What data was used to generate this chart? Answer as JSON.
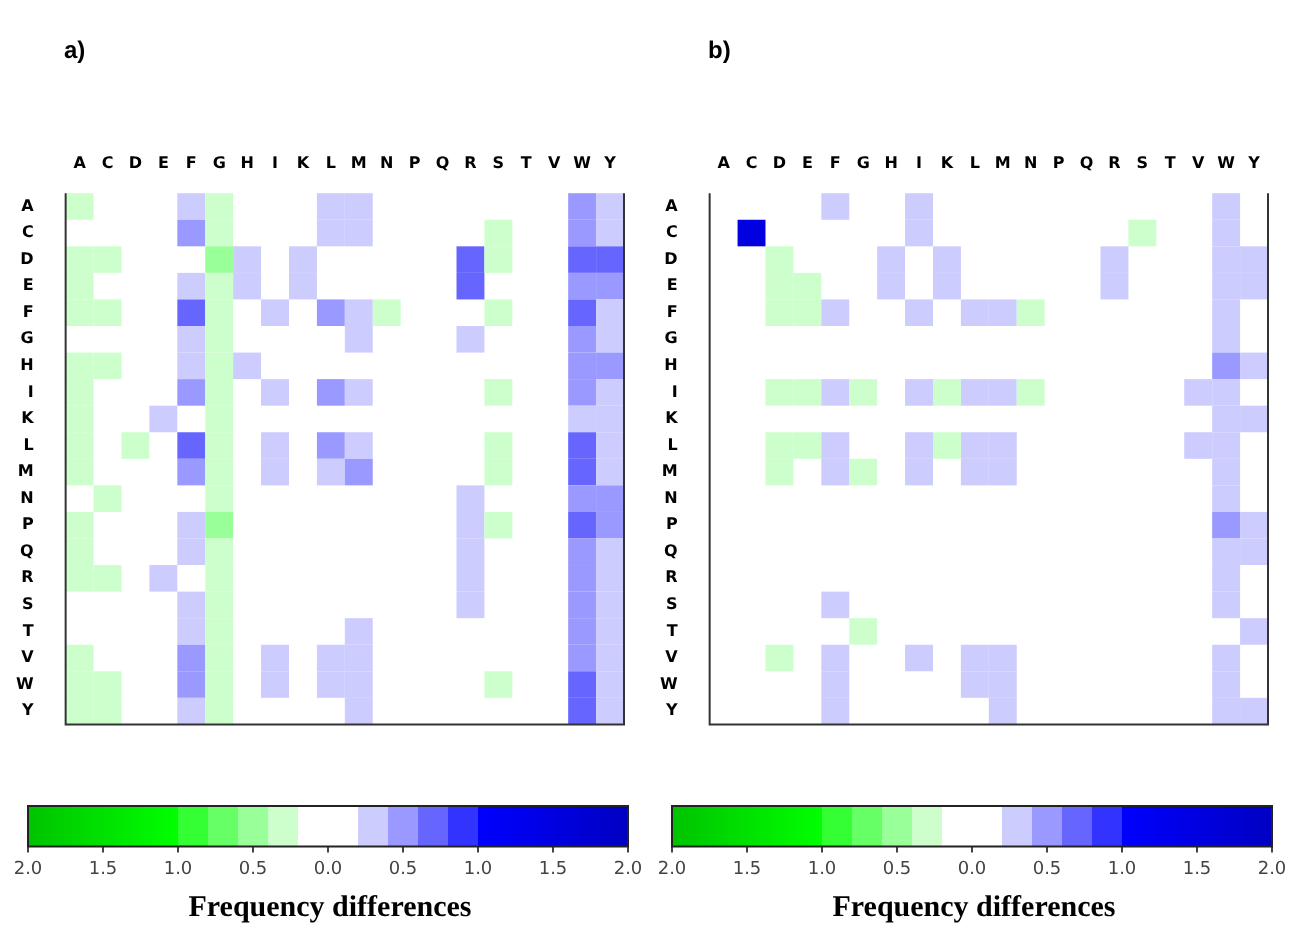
{
  "chart_data": [
    {
      "type": "heatmap",
      "title": "a)",
      "clabel": "Frequency differences",
      "clim": [
        -2,
        2
      ],
      "cticks": [
        {
          "value": -2,
          "label": "2.0"
        },
        {
          "value": -1.5,
          "label": "1.5"
        },
        {
          "value": -1,
          "label": "1.0"
        },
        {
          "value": -0.5,
          "label": "0.5"
        },
        {
          "value": 0,
          "label": "0.0"
        },
        {
          "value": 0.5,
          "label": "0.5"
        },
        {
          "value": 1,
          "label": "1.0"
        },
        {
          "value": 1.5,
          "label": "1.5"
        },
        {
          "value": 2,
          "label": "2.0"
        }
      ],
      "categories": [
        "A",
        "C",
        "D",
        "E",
        "F",
        "G",
        "H",
        "I",
        "K",
        "L",
        "M",
        "N",
        "P",
        "Q",
        "R",
        "S",
        "T",
        "V",
        "W",
        "Y"
      ],
      "y_categories": [
        "A",
        "C",
        "D",
        "E",
        "F",
        "G",
        "H",
        "I",
        "K",
        "L",
        "M",
        "N",
        "P",
        "Q",
        "R",
        "S",
        "T",
        "V",
        "W",
        "Y"
      ],
      "cells": [
        [
          -0.3,
          null,
          null,
          null,
          0.3,
          -0.3,
          null,
          null,
          null,
          0.3,
          0.3,
          null,
          null,
          null,
          null,
          null,
          null,
          null,
          0.5,
          0.3
        ],
        [
          null,
          null,
          null,
          null,
          0.5,
          -0.3,
          null,
          null,
          null,
          0.3,
          0.3,
          null,
          null,
          null,
          null,
          -0.3,
          null,
          null,
          0.5,
          0.3
        ],
        [
          -0.3,
          -0.3,
          null,
          null,
          null,
          -0.5,
          0.3,
          null,
          0.3,
          null,
          null,
          null,
          null,
          null,
          0.7,
          -0.3,
          null,
          null,
          0.7,
          0.7
        ],
        [
          -0.3,
          null,
          null,
          null,
          0.3,
          -0.3,
          0.3,
          null,
          0.3,
          null,
          null,
          null,
          null,
          null,
          0.7,
          null,
          null,
          null,
          0.5,
          0.5
        ],
        [
          -0.3,
          -0.3,
          null,
          null,
          0.7,
          -0.3,
          null,
          0.3,
          null,
          0.5,
          0.3,
          -0.3,
          null,
          null,
          null,
          -0.3,
          null,
          null,
          0.7,
          0.3
        ],
        [
          null,
          null,
          null,
          null,
          0.3,
          -0.3,
          null,
          null,
          null,
          null,
          0.3,
          null,
          null,
          null,
          0.3,
          null,
          null,
          null,
          0.5,
          0.3
        ],
        [
          -0.3,
          -0.3,
          null,
          null,
          0.3,
          -0.3,
          0.3,
          null,
          null,
          null,
          null,
          null,
          null,
          null,
          null,
          null,
          null,
          null,
          0.5,
          0.5
        ],
        [
          -0.3,
          null,
          null,
          null,
          0.5,
          -0.3,
          null,
          0.3,
          null,
          0.5,
          0.3,
          null,
          null,
          null,
          null,
          -0.3,
          null,
          null,
          0.5,
          0.3
        ],
        [
          -0.3,
          null,
          null,
          0.3,
          null,
          -0.3,
          null,
          null,
          null,
          null,
          null,
          null,
          null,
          null,
          null,
          null,
          null,
          null,
          0.3,
          0.3
        ],
        [
          -0.3,
          null,
          -0.3,
          null,
          0.7,
          -0.3,
          null,
          0.3,
          null,
          0.5,
          0.3,
          null,
          null,
          null,
          null,
          -0.3,
          null,
          null,
          0.7,
          0.3
        ],
        [
          -0.3,
          null,
          null,
          null,
          0.5,
          -0.3,
          null,
          0.3,
          null,
          0.3,
          0.5,
          null,
          null,
          null,
          null,
          -0.3,
          null,
          null,
          0.7,
          0.3
        ],
        [
          null,
          -0.3,
          null,
          null,
          null,
          -0.3,
          null,
          null,
          null,
          null,
          null,
          null,
          null,
          null,
          0.3,
          null,
          null,
          null,
          0.5,
          0.5
        ],
        [
          -0.3,
          null,
          null,
          null,
          0.3,
          -0.5,
          null,
          null,
          null,
          null,
          null,
          null,
          null,
          null,
          0.3,
          -0.3,
          null,
          null,
          0.7,
          0.5
        ],
        [
          -0.3,
          null,
          null,
          null,
          0.3,
          -0.3,
          null,
          null,
          null,
          null,
          null,
          null,
          null,
          null,
          0.3,
          null,
          null,
          null,
          0.5,
          0.3
        ],
        [
          -0.3,
          -0.3,
          null,
          0.3,
          null,
          -0.3,
          null,
          null,
          null,
          null,
          null,
          null,
          null,
          null,
          0.3,
          null,
          null,
          null,
          0.5,
          0.3
        ],
        [
          null,
          null,
          null,
          null,
          0.3,
          -0.3,
          null,
          null,
          null,
          null,
          null,
          null,
          null,
          null,
          0.3,
          null,
          null,
          null,
          0.5,
          0.3
        ],
        [
          null,
          null,
          null,
          null,
          0.3,
          -0.3,
          null,
          null,
          null,
          null,
          0.3,
          null,
          null,
          null,
          null,
          null,
          null,
          null,
          0.5,
          0.3
        ],
        [
          -0.3,
          null,
          null,
          null,
          0.5,
          -0.3,
          null,
          0.3,
          null,
          0.3,
          0.3,
          null,
          null,
          null,
          null,
          null,
          null,
          null,
          0.5,
          0.3
        ],
        [
          -0.3,
          -0.3,
          null,
          null,
          0.5,
          -0.3,
          null,
          0.3,
          null,
          0.3,
          0.3,
          null,
          null,
          null,
          null,
          -0.3,
          null,
          null,
          0.7,
          0.3
        ],
        [
          -0.3,
          -0.3,
          null,
          null,
          0.3,
          -0.3,
          null,
          null,
          null,
          null,
          0.3,
          null,
          null,
          null,
          null,
          null,
          null,
          null,
          0.7,
          0.3
        ]
      ]
    },
    {
      "type": "heatmap",
      "title": "b)",
      "clabel": "Frequency differences",
      "clim": [
        -2,
        2
      ],
      "cticks": [
        {
          "value": -2,
          "label": "2.0"
        },
        {
          "value": -1.5,
          "label": "1.5"
        },
        {
          "value": -1,
          "label": "1.0"
        },
        {
          "value": -0.5,
          "label": "0.5"
        },
        {
          "value": 0,
          "label": "0.0"
        },
        {
          "value": 0.5,
          "label": "0.5"
        },
        {
          "value": 1,
          "label": "1.0"
        },
        {
          "value": 1.5,
          "label": "1.5"
        },
        {
          "value": 2,
          "label": "2.0"
        }
      ],
      "categories": [
        "A",
        "C",
        "D",
        "E",
        "F",
        "G",
        "H",
        "I",
        "K",
        "L",
        "M",
        "N",
        "P",
        "Q",
        "R",
        "S",
        "T",
        "V",
        "W",
        "Y"
      ],
      "y_categories": [
        "A",
        "C",
        "D",
        "E",
        "F",
        "G",
        "H",
        "I",
        "K",
        "L",
        "M",
        "N",
        "P",
        "Q",
        "R",
        "S",
        "T",
        "V",
        "W",
        "Y"
      ],
      "cells": [
        [
          null,
          null,
          null,
          null,
          0.3,
          null,
          null,
          0.3,
          null,
          null,
          null,
          null,
          null,
          null,
          null,
          null,
          null,
          null,
          0.3,
          null
        ],
        [
          null,
          1.5,
          null,
          null,
          null,
          null,
          null,
          0.3,
          null,
          null,
          null,
          null,
          null,
          null,
          null,
          -0.3,
          null,
          null,
          0.3,
          null
        ],
        [
          null,
          null,
          -0.3,
          null,
          null,
          null,
          0.3,
          null,
          0.3,
          null,
          null,
          null,
          null,
          null,
          0.3,
          null,
          null,
          null,
          0.3,
          0.3
        ],
        [
          null,
          null,
          -0.3,
          -0.3,
          null,
          null,
          0.3,
          null,
          0.3,
          null,
          null,
          null,
          null,
          null,
          0.3,
          null,
          null,
          null,
          0.3,
          0.3
        ],
        [
          null,
          null,
          -0.3,
          -0.3,
          0.3,
          null,
          null,
          0.3,
          null,
          0.3,
          0.3,
          -0.3,
          null,
          null,
          null,
          null,
          null,
          null,
          0.3,
          null
        ],
        [
          null,
          null,
          null,
          null,
          null,
          null,
          null,
          null,
          null,
          null,
          null,
          null,
          null,
          null,
          null,
          null,
          null,
          null,
          0.3,
          null
        ],
        [
          null,
          null,
          null,
          null,
          null,
          null,
          null,
          null,
          null,
          null,
          null,
          null,
          null,
          null,
          null,
          null,
          null,
          null,
          0.5,
          0.3
        ],
        [
          null,
          null,
          -0.3,
          -0.3,
          0.3,
          -0.3,
          null,
          0.3,
          -0.3,
          0.3,
          0.3,
          -0.3,
          null,
          null,
          null,
          null,
          null,
          0.3,
          0.3,
          null
        ],
        [
          null,
          null,
          null,
          null,
          null,
          null,
          null,
          null,
          null,
          null,
          null,
          null,
          null,
          null,
          null,
          null,
          null,
          null,
          0.3,
          0.3
        ],
        [
          null,
          null,
          -0.3,
          -0.3,
          0.3,
          null,
          null,
          0.3,
          -0.3,
          0.3,
          0.3,
          null,
          null,
          null,
          null,
          null,
          null,
          0.3,
          0.3,
          null
        ],
        [
          null,
          null,
          -0.3,
          null,
          0.3,
          -0.3,
          null,
          0.3,
          null,
          0.3,
          0.3,
          null,
          null,
          null,
          null,
          null,
          null,
          null,
          0.3,
          null
        ],
        [
          null,
          null,
          null,
          null,
          null,
          null,
          null,
          null,
          null,
          null,
          null,
          null,
          null,
          null,
          null,
          null,
          null,
          null,
          0.3,
          null
        ],
        [
          null,
          null,
          null,
          null,
          null,
          null,
          null,
          null,
          null,
          null,
          null,
          null,
          null,
          null,
          null,
          null,
          null,
          null,
          0.5,
          0.3
        ],
        [
          null,
          null,
          null,
          null,
          null,
          null,
          null,
          null,
          null,
          null,
          null,
          null,
          null,
          null,
          null,
          null,
          null,
          null,
          0.3,
          0.3
        ],
        [
          null,
          null,
          null,
          null,
          null,
          null,
          null,
          null,
          null,
          null,
          null,
          null,
          null,
          null,
          null,
          null,
          null,
          null,
          0.3,
          null
        ],
        [
          null,
          null,
          null,
          null,
          0.3,
          null,
          null,
          null,
          null,
          null,
          null,
          null,
          null,
          null,
          null,
          null,
          null,
          null,
          0.3,
          null
        ],
        [
          null,
          null,
          null,
          null,
          null,
          -0.3,
          null,
          null,
          null,
          null,
          null,
          null,
          null,
          null,
          null,
          null,
          null,
          null,
          null,
          0.3
        ],
        [
          null,
          null,
          -0.3,
          null,
          0.3,
          null,
          null,
          0.3,
          null,
          0.3,
          0.3,
          null,
          null,
          null,
          null,
          null,
          null,
          null,
          0.3,
          null
        ],
        [
          null,
          null,
          null,
          null,
          0.3,
          null,
          null,
          null,
          null,
          0.3,
          0.3,
          null,
          null,
          null,
          null,
          null,
          null,
          null,
          0.3,
          null
        ],
        [
          null,
          null,
          null,
          null,
          0.3,
          null,
          null,
          null,
          null,
          null,
          0.3,
          null,
          null,
          null,
          null,
          null,
          null,
          null,
          0.3,
          0.3
        ]
      ]
    }
  ]
}
